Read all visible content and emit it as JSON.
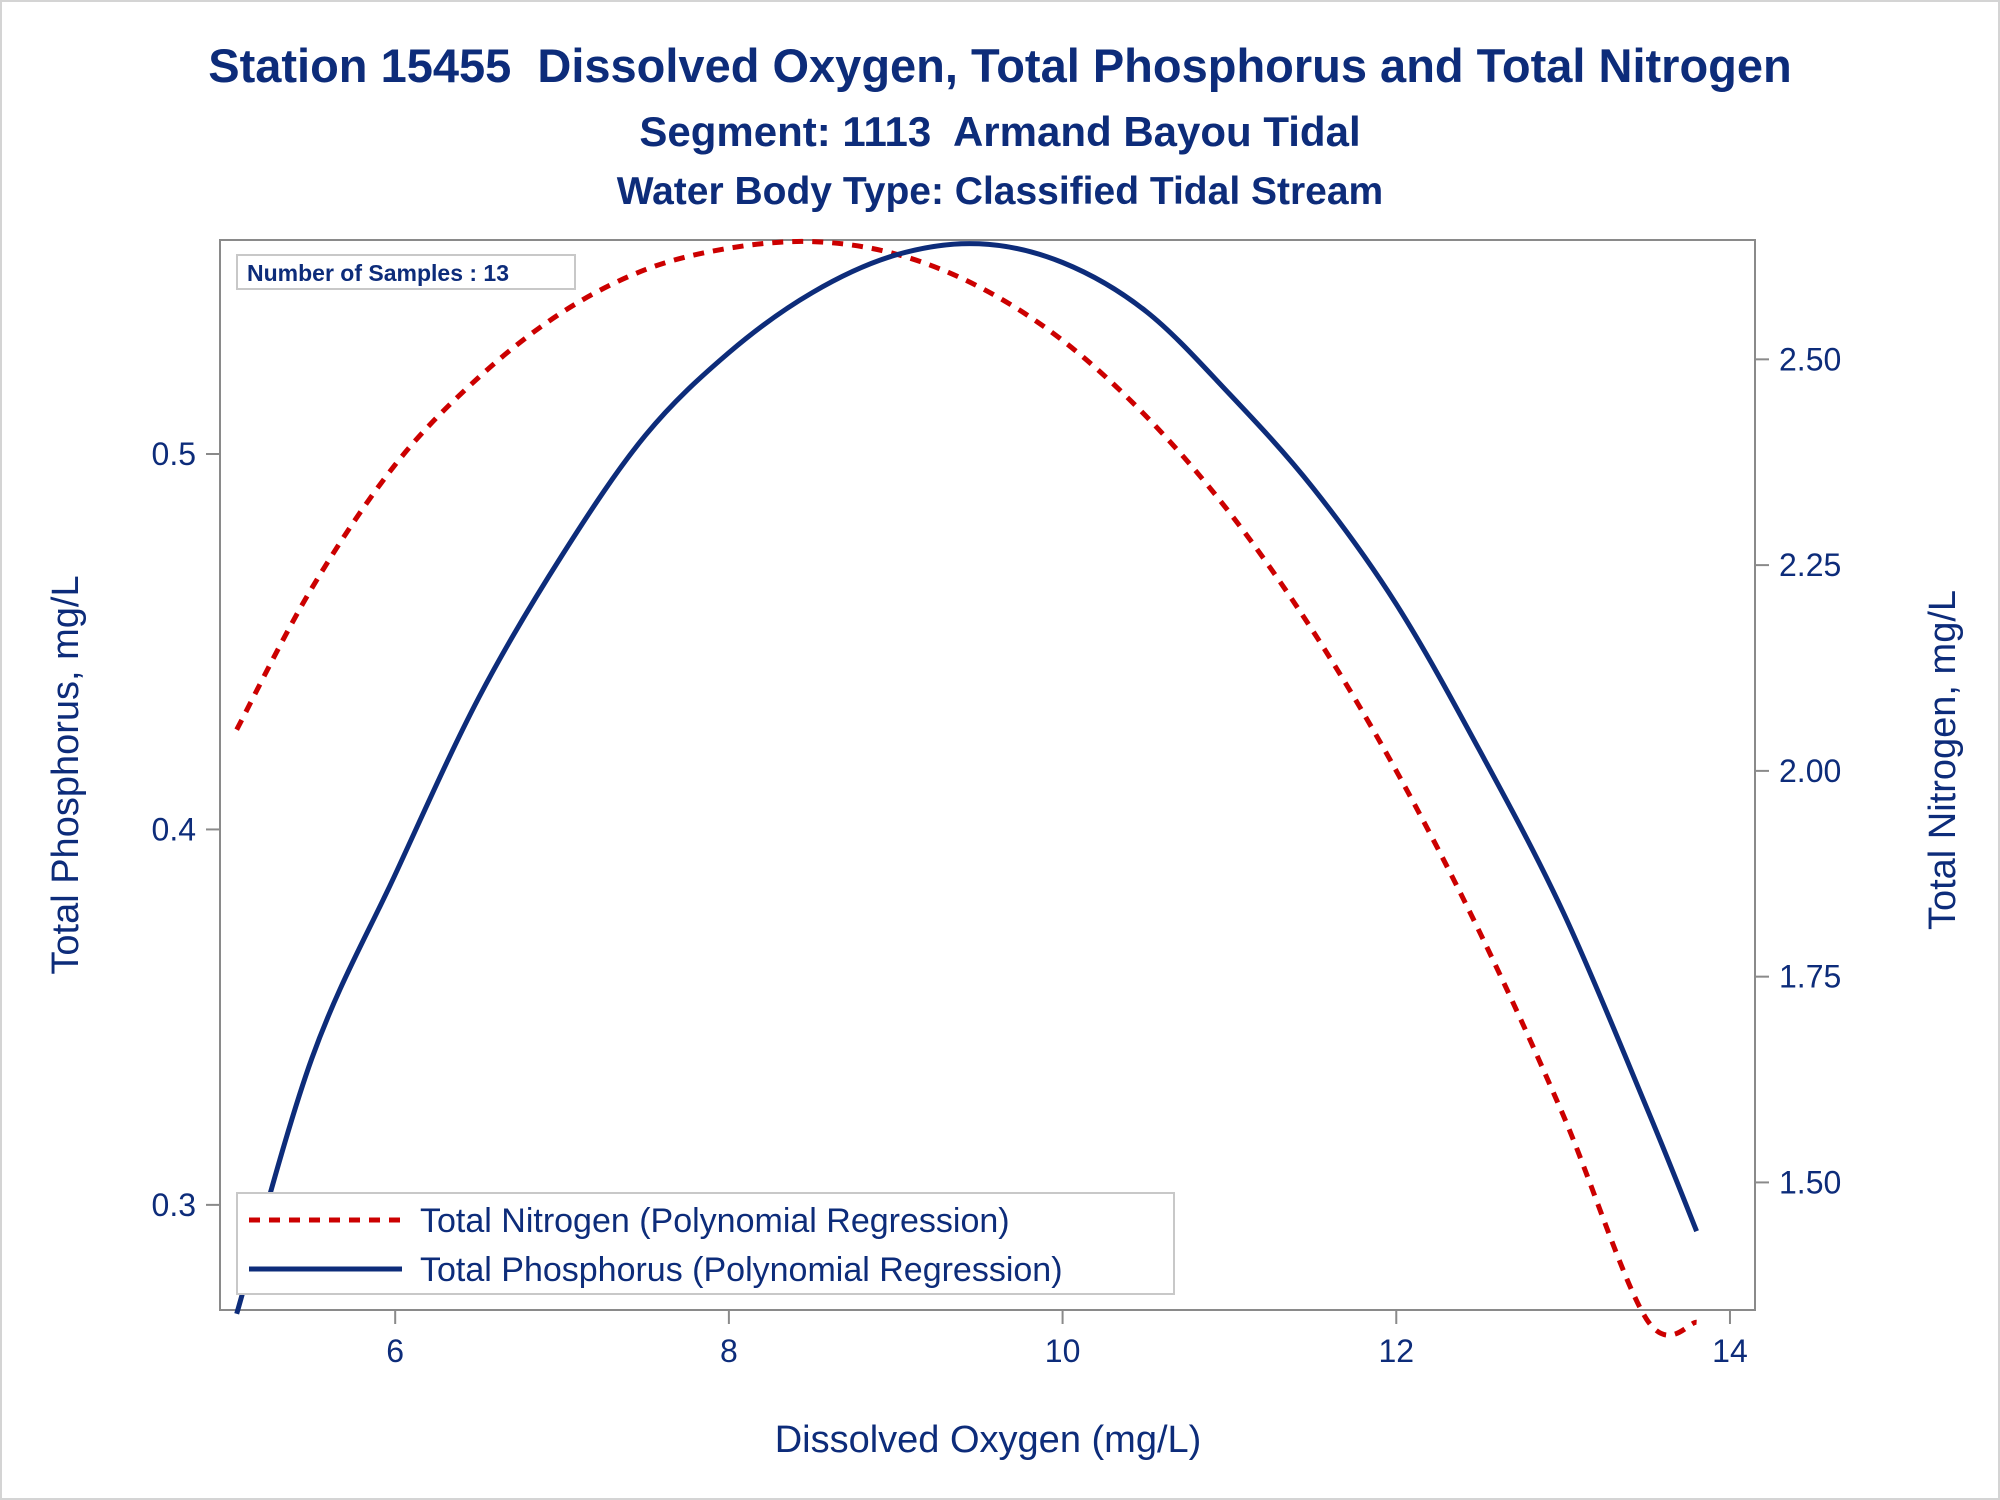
{
  "chart_data": {
    "type": "line",
    "title": "Station 15455  Dissolved Oxygen, Total Phosphorus and Total Nitrogen",
    "subtitles": [
      "Segment: 1113  Armand Bayou Tidal",
      "Water Body Type: Classified Tidal Stream"
    ],
    "xlabel": "Dissolved Oxygen (mg/L)",
    "ylabel_left": "Total Phosphorus, mg/L",
    "ylabel_right": "Total Nitrogen, mg/L",
    "xlim": [
      4.95,
      14.15
    ],
    "ylim_left": [
      0.272,
      0.557
    ],
    "ylim_right": [
      1.345,
      2.645
    ],
    "x_ticks": [
      "6",
      "8",
      "10",
      "12",
      "14"
    ],
    "y_ticks_left": [
      "0.3",
      "0.4",
      "0.5"
    ],
    "y_ticks_right": [
      "1.50",
      "1.75",
      "2.00",
      "2.25",
      "2.50"
    ],
    "grid": false,
    "inset_text": "Number of Samples : 13",
    "legend_position": "bottom-left inside",
    "series": [
      {
        "name": "Total Nitrogen (Polynomial Regression)",
        "axis": "right",
        "color": "#cc0000",
        "style": "dashed",
        "x": [
          5.05,
          5.5,
          6.0,
          6.5,
          7.0,
          7.5,
          8.0,
          8.5,
          9.0,
          9.5,
          10.0,
          10.5,
          11.0,
          11.5,
          12.0,
          12.5,
          13.0,
          13.5,
          13.8
        ],
        "y": [
          2.05,
          2.222,
          2.372,
          2.478,
          2.557,
          2.609,
          2.635,
          2.643,
          2.628,
          2.588,
          2.523,
          2.431,
          2.314,
          2.17,
          2.0,
          1.804,
          1.582,
          1.334,
          1.33
        ]
      },
      {
        "name": "Total Phosphorus (Polynomial Regression)",
        "axis": "left",
        "color": "#0d2c7a",
        "style": "solid",
        "x": [
          5.05,
          5.5,
          6.0,
          6.5,
          7.0,
          7.5,
          8.0,
          8.5,
          9.0,
          9.5,
          10.0,
          10.5,
          11.0,
          11.5,
          12.0,
          12.5,
          13.0,
          13.5,
          13.8
        ],
        "y": [
          0.271,
          0.339,
          0.388,
          0.435,
          0.473,
          0.505,
          0.527,
          0.543,
          0.553,
          0.556,
          0.551,
          0.538,
          0.516,
          0.491,
          0.46,
          0.421,
          0.378,
          0.326,
          0.293
        ]
      }
    ]
  }
}
